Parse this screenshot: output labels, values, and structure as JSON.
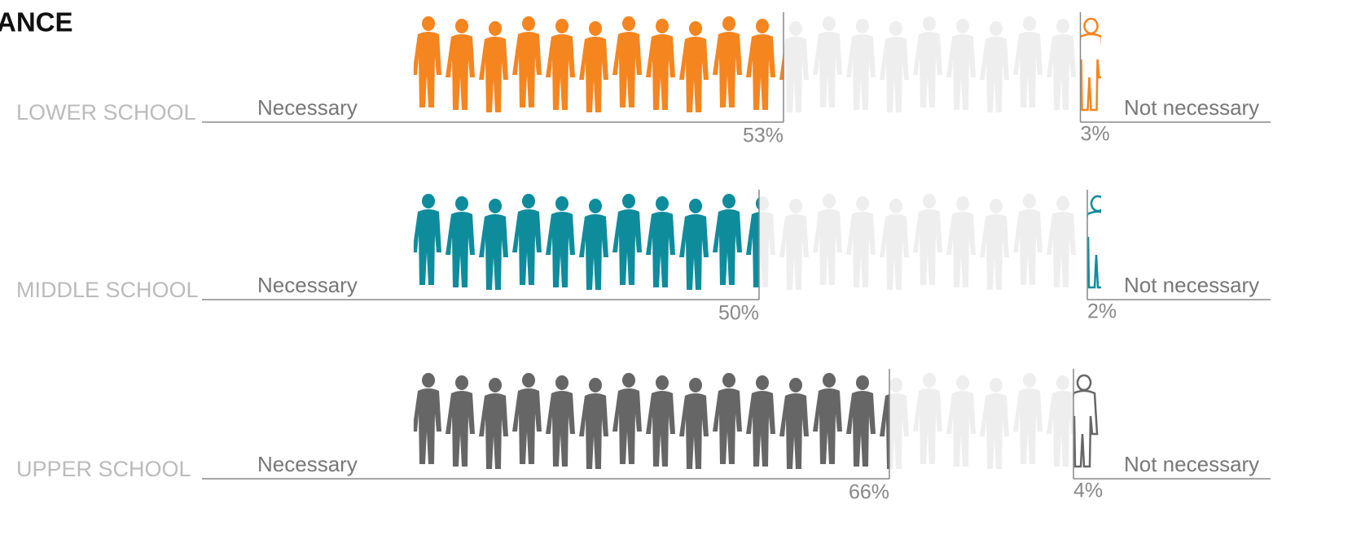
{
  "chart_data": {
    "type": "pictograph",
    "title": "ANCE",
    "categories": [
      "LOWER SCHOOL",
      "MIDDLE SCHOOL",
      "UPPER SCHOOL"
    ],
    "colors": [
      "#f5851f",
      "#0e8c9c",
      "#666666"
    ],
    "series": [
      {
        "name": "Necessary",
        "values": [
          53,
          50,
          66
        ],
        "value_labels": [
          "53%",
          "50%",
          "66%"
        ]
      },
      {
        "name": "Not necessary",
        "values": [
          3,
          2,
          4
        ],
        "value_labels": [
          "3%",
          "2%",
          "4%"
        ]
      }
    ]
  }
}
